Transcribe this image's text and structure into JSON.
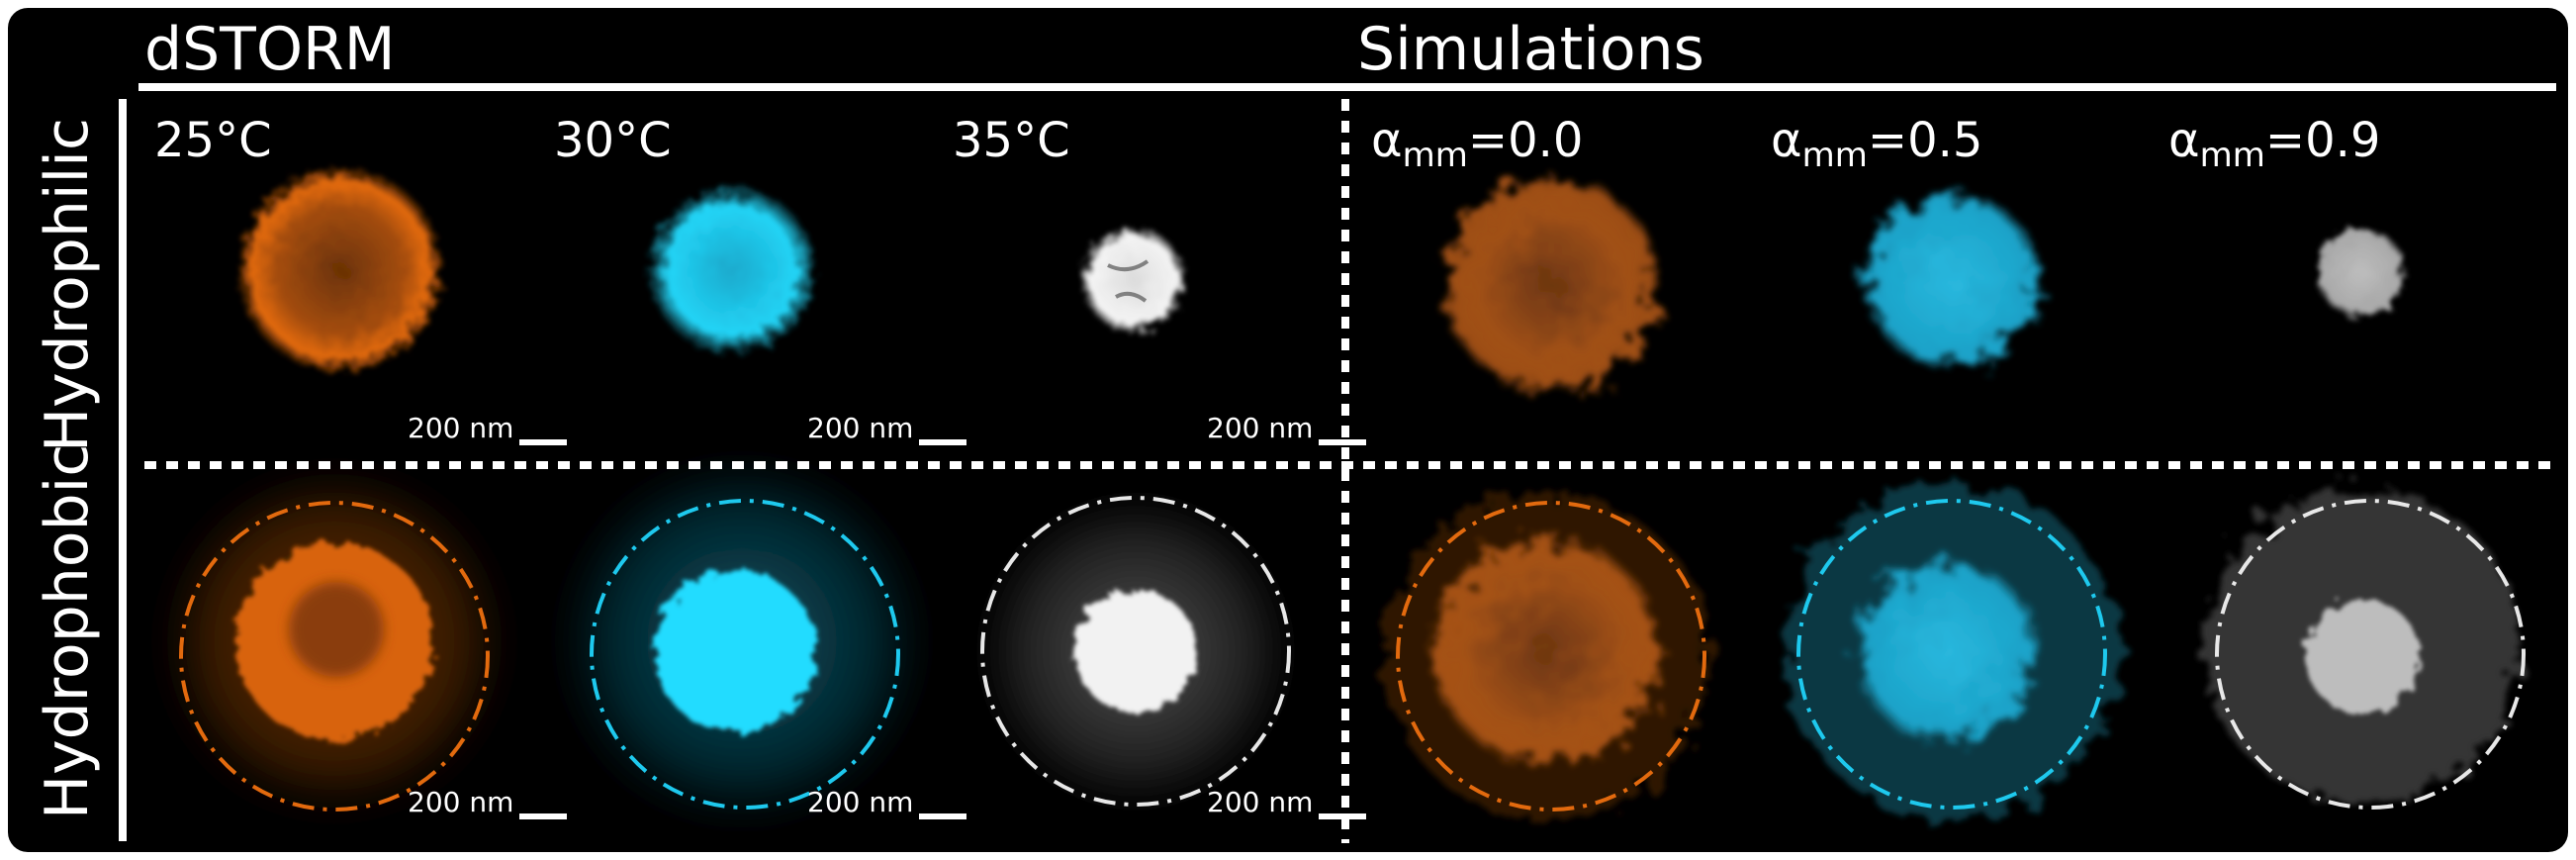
{
  "headers": {
    "left": "dSTORM",
    "right": "Simulations"
  },
  "rows": {
    "top": "Hydrophilic",
    "bottom": "Hydrophobic"
  },
  "conditions": {
    "t25": "25°C",
    "t30": "30°C",
    "t35": "35°C",
    "sim_base": "α",
    "sim_sub": "mm",
    "a0": "=0.0",
    "a5": "=0.5",
    "a9": "=0.9"
  },
  "scalebar": {
    "value": "200",
    "unit": "nm"
  },
  "colors": {
    "orange": "#e36a0e",
    "cyan": "#1ec9ee",
    "white": "#e8e8e8",
    "background": "#000000"
  }
}
